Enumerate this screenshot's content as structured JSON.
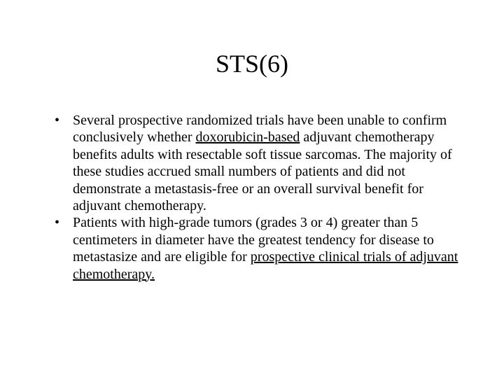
{
  "slide": {
    "title": "STS(6)",
    "bullets": [
      {
        "segments": [
          {
            "text": "Several prospective randomized trials have been unable to confirm conclusively whether ",
            "underline": false
          },
          {
            "text": "doxorubicin-based",
            "underline": true
          },
          {
            "text": " adjuvant chemotherapy benefits adults with resectable soft tissue sarcomas. The majority of these studies accrued small numbers of patients and did not demonstrate a metastasis-free or an overall survival benefit for adjuvant chemotherapy.",
            "underline": false
          }
        ]
      },
      {
        "segments": [
          {
            "text": " Patients with high-grade tumors (grades 3 or 4) greater than 5 centimeters in diameter have the greatest tendency for disease to metastasize and are eligible for ",
            "underline": false
          },
          {
            "text": "prospective clinical trials of adjuvant chemotherapy.",
            "underline": true
          }
        ]
      }
    ]
  },
  "style": {
    "background_color": "#ffffff",
    "text_color": "#000000",
    "title_fontsize": 36,
    "body_fontsize": 20,
    "font_family": "Times New Roman"
  }
}
